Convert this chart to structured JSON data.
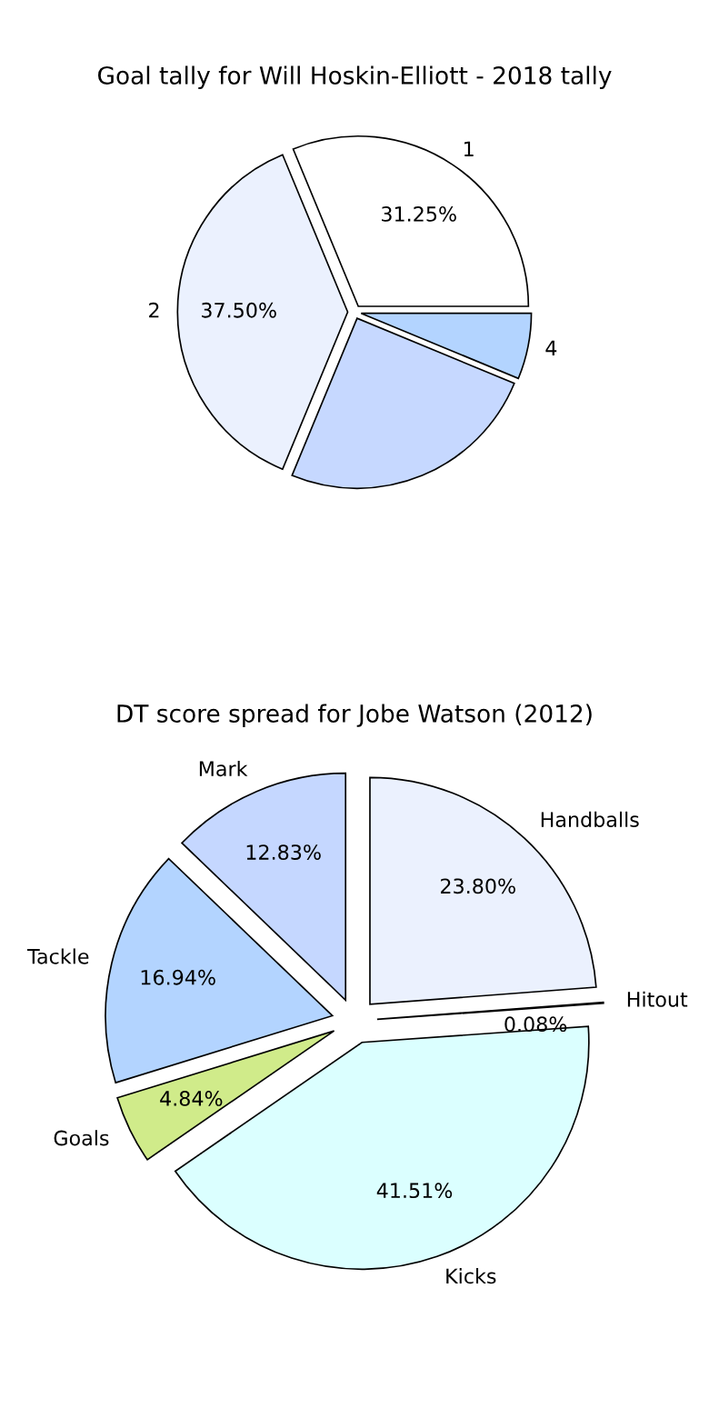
{
  "chart_data": [
    {
      "type": "pie",
      "title": "Goal tally for Will Hoskin-Elliott - 2018 tally",
      "categories": [
        "1",
        "2",
        null,
        "4"
      ],
      "values": [
        31.25,
        37.5,
        25,
        6.25
      ],
      "colors": [
        "#ffffff",
        "#ebf1fe",
        "#c6d8ff",
        "#b3d4ff"
      ],
      "value_labels": [
        "31.25%",
        "37.50%",
        null,
        null
      ]
    },
    {
      "type": "pie",
      "title": "DT score spread for Jobe Watson (2012)",
      "categories": [
        "Handballs",
        "Hitout",
        "Kicks",
        "Goals",
        "Tackle",
        "Mark"
      ],
      "values": [
        23.8,
        0.08,
        41.51,
        4.84,
        16.94,
        12.83
      ],
      "colors": [
        "#ebf1fe",
        "#f5f5f5",
        "#dbffff",
        "#d0eb8a",
        "#b3d4ff",
        "#c5d7ff"
      ],
      "value_labels": [
        "23.80%",
        "0.08%",
        "41.51%",
        "4.84%",
        "16.94%",
        "12.83%"
      ]
    }
  ]
}
